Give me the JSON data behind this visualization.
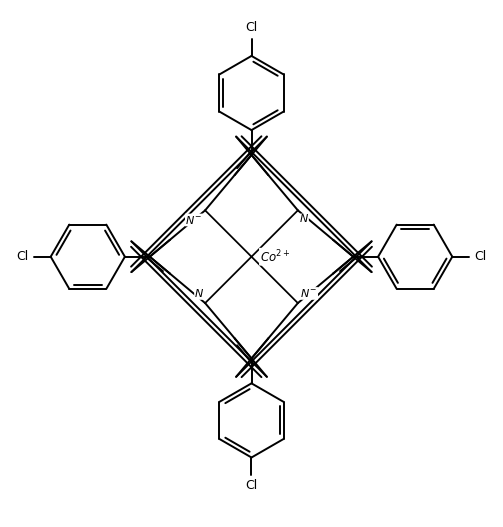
{
  "background_color": "#ffffff",
  "line_color": "#000000",
  "line_width": 1.4,
  "fig_width": 5.03,
  "fig_height": 5.27,
  "dpi": 100,
  "xlim": [
    -5.5,
    5.5
  ],
  "ylim": [
    -5.8,
    5.5
  ]
}
